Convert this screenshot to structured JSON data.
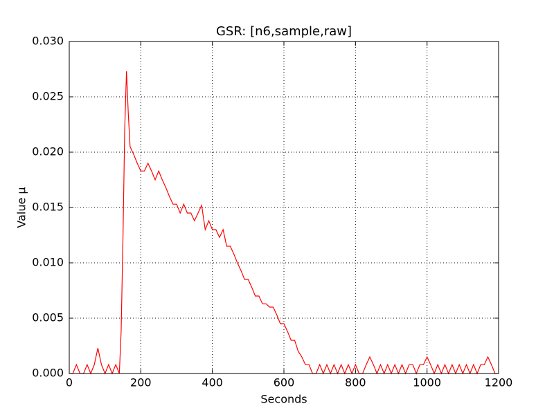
{
  "chart_data": {
    "type": "line",
    "title": "GSR: [n6,sample,raw]",
    "xlabel": "Seconds",
    "ylabel": "Value µ",
    "x": [
      0,
      10,
      20,
      30,
      40,
      50,
      60,
      70,
      80,
      90,
      100,
      110,
      120,
      130,
      140,
      145,
      150,
      155,
      160,
      165,
      170,
      180,
      190,
      200,
      210,
      220,
      230,
      240,
      250,
      260,
      270,
      280,
      290,
      300,
      310,
      320,
      330,
      340,
      350,
      360,
      370,
      380,
      390,
      400,
      410,
      420,
      430,
      440,
      450,
      460,
      470,
      480,
      490,
      500,
      510,
      520,
      530,
      540,
      550,
      560,
      570,
      580,
      590,
      600,
      610,
      620,
      630,
      640,
      650,
      660,
      670,
      680,
      690,
      700,
      710,
      720,
      730,
      740,
      750,
      760,
      770,
      780,
      790,
      800,
      810,
      820,
      830,
      840,
      850,
      860,
      870,
      880,
      890,
      900,
      910,
      920,
      930,
      940,
      950,
      960,
      970,
      980,
      990,
      1000,
      1010,
      1020,
      1030,
      1040,
      1050,
      1060,
      1070,
      1080,
      1090,
      1100,
      1110,
      1120,
      1130,
      1140,
      1150,
      1160,
      1170,
      1180,
      1190,
      1200
    ],
    "series": [
      {
        "name": "GSR",
        "color": "#ff0000",
        "values": [
          0,
          0,
          0.0008,
          0,
          0,
          0.0008,
          0,
          0.0008,
          0.0023,
          0.0008,
          0,
          0.0008,
          0,
          0.0008,
          0,
          0.0038,
          0.012,
          0.022,
          0.0273,
          0.0235,
          0.0205,
          0.0198,
          0.019,
          0.0183,
          0.0183,
          0.019,
          0.0183,
          0.0175,
          0.0183,
          0.0175,
          0.0168,
          0.016,
          0.0153,
          0.0153,
          0.0145,
          0.0153,
          0.0145,
          0.0145,
          0.0138,
          0.0145,
          0.0152,
          0.013,
          0.0138,
          0.013,
          0.013,
          0.0123,
          0.013,
          0.0115,
          0.0115,
          0.0108,
          0.01,
          0.0093,
          0.0085,
          0.0085,
          0.0078,
          0.007,
          0.007,
          0.0063,
          0.0063,
          0.006,
          0.006,
          0.0053,
          0.0045,
          0.0045,
          0.0038,
          0.003,
          0.003,
          0.002,
          0.0015,
          0.0008,
          0.0008,
          0,
          0,
          0.0008,
          0,
          0.0008,
          0,
          0.0008,
          0,
          0.0008,
          0,
          0.0008,
          0,
          0.0008,
          0,
          0,
          0.0008,
          0.0015,
          0.0008,
          0,
          0.0008,
          0,
          0.0008,
          0,
          0.0008,
          0,
          0.0008,
          0,
          0.0008,
          0.0008,
          0,
          0.0008,
          0.0008,
          0.0015,
          0.0008,
          0,
          0.0008,
          0,
          0.0008,
          0,
          0.0008,
          0,
          0.0008,
          0,
          0.0008,
          0,
          0.0008,
          0,
          0.0008,
          0.0008,
          0.0015,
          0.0008,
          0,
          0
        ]
      }
    ],
    "xlim": [
      0,
      1200
    ],
    "xticks": [
      0,
      200,
      400,
      600,
      800,
      1000,
      1200
    ],
    "ylim": [
      0,
      0.03
    ],
    "yticks": [
      {
        "value": 0,
        "label": "0.000"
      },
      {
        "value": 0.005,
        "label": "0.005"
      },
      {
        "value": 0.01,
        "label": "0.010"
      },
      {
        "value": 0.015,
        "label": "0.015"
      },
      {
        "value": 0.02,
        "label": "0.020"
      },
      {
        "value": 0.025,
        "label": "0.025"
      },
      {
        "value": 0.03,
        "label": "0.030"
      }
    ],
    "grid": true
  }
}
